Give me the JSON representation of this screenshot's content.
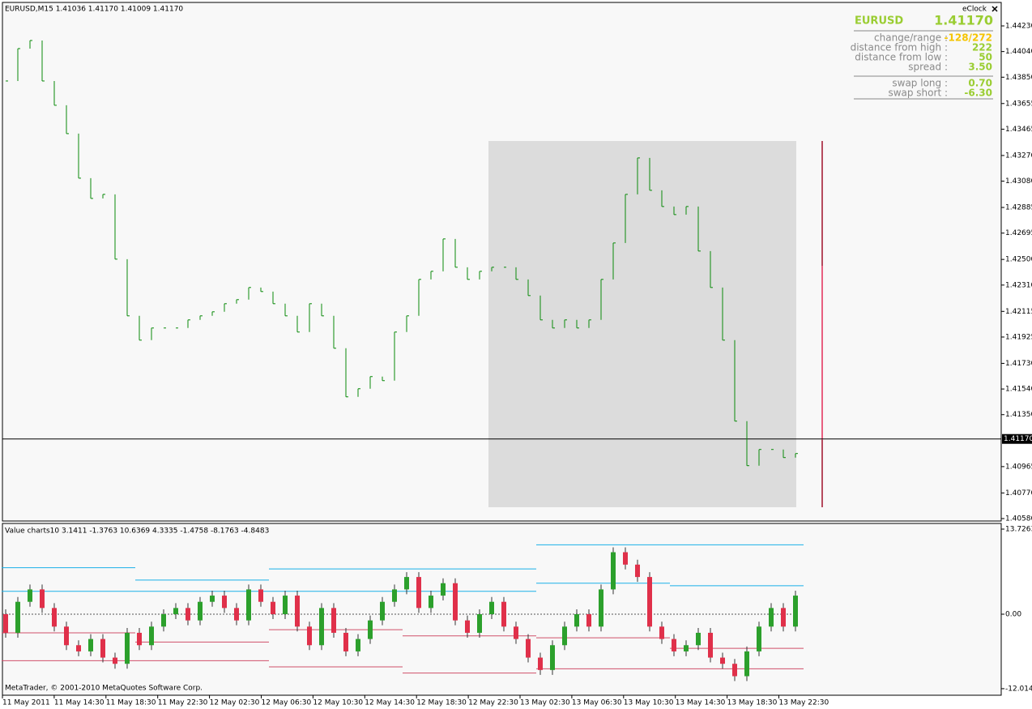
{
  "window": {
    "header": "EURUSD,M15  1.41036 1.41170 1.41009 1.41170",
    "footer": "MetaTrader, © 2001-2010 MetaQuotes Software Corp."
  },
  "main_chart": {
    "ylim": [
      1.40562,
      1.44404
    ],
    "yticks": [
      {
        "value": 1.4423,
        "label": "1.44230"
      },
      {
        "value": 1.4404,
        "label": "1.44040"
      },
      {
        "value": 1.4385,
        "label": "1.43850"
      },
      {
        "value": 1.43655,
        "label": "1.43655"
      },
      {
        "value": 1.43465,
        "label": "1.43465"
      },
      {
        "value": 1.4327,
        "label": "1.43270"
      },
      {
        "value": 1.4308,
        "label": "1.43080"
      },
      {
        "value": 1.42885,
        "label": "1.42885"
      },
      {
        "value": 1.42695,
        "label": "1.42695"
      },
      {
        "value": 1.425,
        "label": "1.42500"
      },
      {
        "value": 1.4231,
        "label": "1.42310"
      },
      {
        "value": 1.42115,
        "label": "1.42115"
      },
      {
        "value": 1.41925,
        "label": "1.41925"
      },
      {
        "value": 1.4173,
        "label": "1.41730"
      },
      {
        "value": 1.4154,
        "label": "1.41540"
      },
      {
        "value": 1.4135,
        "label": "1.41350"
      },
      {
        "value": 1.40965,
        "label": "1.40965"
      },
      {
        "value": 1.4077,
        "label": "1.40770"
      },
      {
        "value": 1.4058,
        "label": "1.40580"
      }
    ],
    "current_price": {
      "value": 1.4117,
      "label": "1.41170"
    },
    "color": "#0a8a0a",
    "close": [
      1.43822,
      1.44062,
      1.44122,
      1.43822,
      1.43642,
      1.43432,
      1.43102,
      1.42952,
      1.42982,
      1.42502,
      1.42082,
      1.41902,
      1.41992,
      1.41992,
      1.41992,
      1.42052,
      1.42082,
      1.42112,
      1.42172,
      1.42202,
      1.42292,
      1.42262,
      1.42172,
      1.42082,
      1.41962,
      1.42172,
      1.42082,
      1.41842,
      1.41482,
      1.41542,
      1.41632,
      1.41602,
      1.41962,
      1.42082,
      1.42352,
      1.42412,
      1.42652,
      1.42442,
      1.42352,
      1.42412,
      1.42442,
      1.42442,
      1.42352,
      1.42232,
      1.42052,
      1.41992,
      1.42052,
      1.41992,
      1.42052,
      1.42352,
      1.42622,
      1.42982,
      1.43252,
      1.43012,
      1.42892,
      1.42832,
      1.42892,
      1.42562,
      1.42292,
      1.41902,
      1.41302,
      1.40972,
      1.41092,
      1.41092,
      1.41032,
      1.41062
    ],
    "x_labels": [
      "11 May 2011",
      "11 May 14:30",
      "11 May 18:30",
      "11 May 22:30",
      "12 May 02:30",
      "12 May 06:30",
      "12 May 10:30",
      "12 May 14:30",
      "12 May 18:30",
      "12 May 22:30",
      "13 May 02:30",
      "13 May 06:30",
      "13 May 10:30",
      "13 May 14:30",
      "13 May 18:30",
      "13 May 22:30"
    ]
  },
  "indicator": {
    "title": "Value charts10 3.1411 -1.3763 10.6369 4.3335 -1.4758 -8.1763 -4.8483",
    "ylim": [
      -13.07,
      14.64
    ],
    "yticks": [
      13.7263,
      {
        "value": 0,
        "label": "0.00"
      },
      -12.0145
    ],
    "up_color": "#2ca02c",
    "down_color": "#e0304a",
    "open": [
      0,
      -3,
      2,
      4,
      1,
      -2,
      -5,
      -6,
      -4,
      -7,
      -8,
      -3,
      -5,
      -2,
      0,
      1,
      -1,
      2,
      3,
      1,
      -1,
      4,
      2,
      0,
      3,
      -2,
      -5,
      1,
      -3,
      -6,
      -4,
      -1,
      2,
      4,
      6,
      1,
      3,
      5,
      -1,
      -3,
      0,
      2,
      -2,
      -4,
      -7,
      -9,
      -5,
      -2,
      0,
      -2,
      4,
      10,
      8,
      6,
      -2,
      -4,
      -6,
      -5,
      -3,
      -7,
      -8,
      -10,
      -6,
      -2,
      1,
      -2
    ],
    "close": [
      -3,
      2,
      4,
      1,
      -2,
      -5,
      -6,
      -4,
      -7,
      -8,
      -3,
      -5,
      -2,
      0,
      1,
      -1,
      2,
      3,
      1,
      -1,
      4,
      2,
      0,
      3,
      -2,
      -5,
      1,
      -3,
      -6,
      -4,
      -1,
      2,
      4,
      6,
      1,
      3,
      5,
      -1,
      -3,
      0,
      2,
      -2,
      -4,
      -7,
      -9,
      -5,
      -2,
      0,
      -2,
      4,
      10,
      8,
      6,
      -2,
      -4,
      -6,
      -5,
      -3,
      -7,
      -8,
      -10,
      -6,
      -2,
      1,
      -2,
      3
    ],
    "bands": [
      {
        "color": "#1ab0e8",
        "values": [
          7.5,
          5.5,
          7.3,
          7.3,
          11.2,
          11.2
        ]
      },
      {
        "color": "#1ab0e8",
        "values": [
          3.7,
          3.7,
          3.7,
          3.7,
          5,
          4.6
        ]
      },
      {
        "color": "#d0506a",
        "values": [
          -3,
          -4.5,
          -2.5,
          -3.5,
          -3.8,
          -5.5
        ]
      },
      {
        "color": "#d0506a",
        "values": [
          -7.5,
          -7.5,
          -8.5,
          -9.5,
          -8.8,
          -8.8
        ]
      }
    ]
  },
  "eclock": {
    "title": "eClock",
    "symbol": "EURUSD",
    "price": "1.41170",
    "rows": [
      {
        "label": "change/range :",
        "value": "-128/272"
      },
      {
        "label": "distance from high :",
        "value": "222"
      },
      {
        "label": "distance from low :",
        "value": "50"
      },
      {
        "label": "spread :",
        "value": "3.50"
      }
    ],
    "swap_rows": [
      {
        "label": "swap long :",
        "value": "0.70"
      },
      {
        "label": "swap short :",
        "value": "-6.30"
      }
    ]
  }
}
